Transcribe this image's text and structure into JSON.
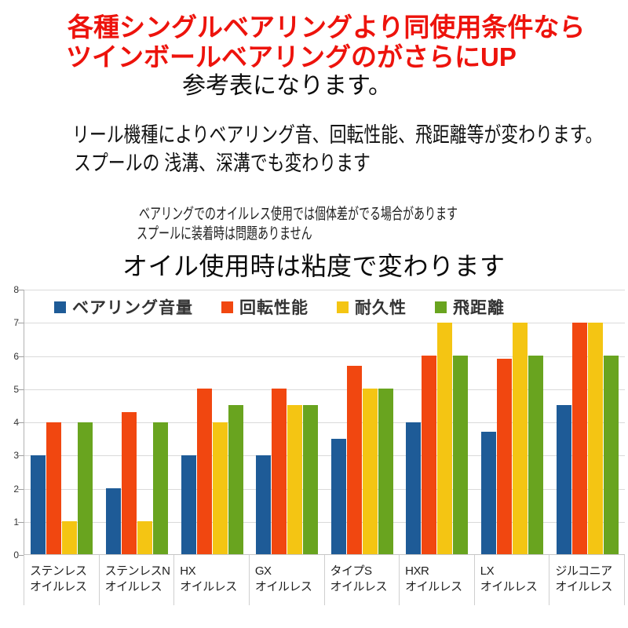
{
  "header": {
    "red_line1": "各種シングルベアリングより同使用条件なら",
    "red_line2": "ツインボールベアリングのがさらにUP",
    "subtitle": "参考表になります。",
    "note1": "リール機種によりベアリング音、回転性能、飛距離等が変わります。",
    "note2": "スプールの 浅溝、深溝でも変わります",
    "small_note1": "ベアリングでのオイルレス使用では個体差がでる場合があります",
    "small_note2": "スプールに装着時は問題ありません",
    "chart_title": "オイル使用時は粘度で変わります",
    "red_color": "#ed130c"
  },
  "chart_data": {
    "type": "bar",
    "title": "オイル使用時は粘度で変わります",
    "xlabel": "",
    "ylabel": "",
    "ylim": [
      0,
      8
    ],
    "yticks": [
      0,
      1,
      2,
      3,
      4,
      5,
      6,
      7,
      8
    ],
    "grid": true,
    "legend_position": "top",
    "categories": [
      {
        "line1": "ステンレス",
        "line2": "オイルレス"
      },
      {
        "line1": "ステンレスN",
        "line2": "オイルレス"
      },
      {
        "line1": "HX",
        "line2": "オイルレス"
      },
      {
        "line1": "GX",
        "line2": "オイルレス"
      },
      {
        "line1": "タイプS",
        "line2": "オイルレス"
      },
      {
        "line1": "HXR",
        "line2": "オイルレス"
      },
      {
        "line1": "LX",
        "line2": "オイルレス"
      },
      {
        "line1": "ジルコニア",
        "line2": "オイルレス"
      }
    ],
    "series": [
      {
        "name": "ベアリング音量",
        "color": "#1e5b97",
        "values": [
          3,
          2,
          3,
          3,
          3.5,
          4,
          3.7,
          4.5
        ]
      },
      {
        "name": "回転性能",
        "color": "#f14710",
        "values": [
          4,
          4.3,
          5,
          5,
          5.7,
          6,
          5.9,
          7
        ]
      },
      {
        "name": "耐久性",
        "color": "#f4c513",
        "values": [
          1,
          1,
          4,
          4.5,
          5,
          7,
          7,
          7
        ]
      },
      {
        "name": "飛距離",
        "color": "#69a41f",
        "values": [
          4,
          4,
          4.5,
          4.5,
          5,
          6,
          6,
          6
        ]
      }
    ],
    "colors": {
      "gridline": "#dadada",
      "axis": "#b3b3b3",
      "tick_label": "#333333",
      "legend_text": "#333333",
      "category_text": "#1e1e1e"
    }
  }
}
